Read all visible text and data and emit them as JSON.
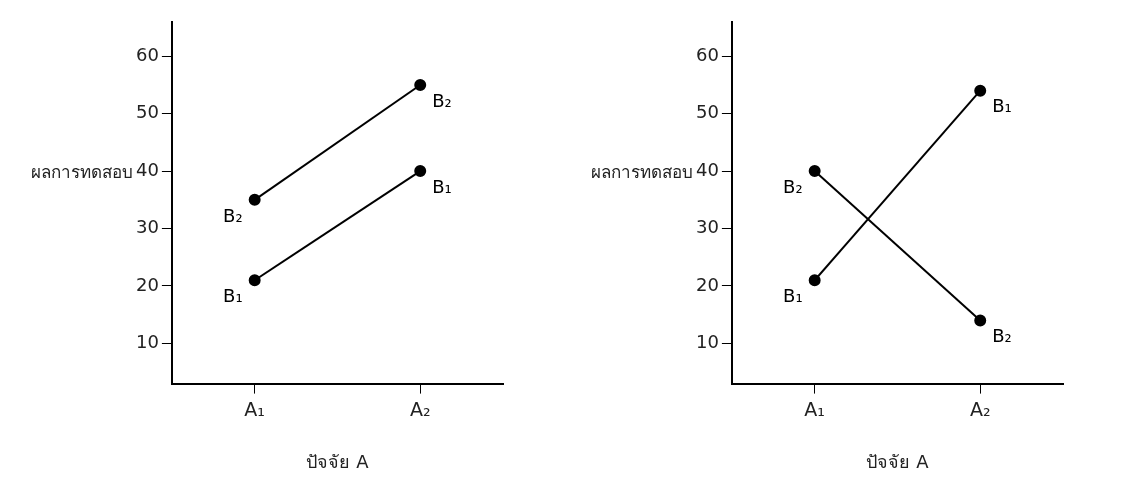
{
  "chart_data": [
    {
      "type": "line",
      "xlabel": "ปัจจัย A",
      "ylabel": "ผลการทดสอบ",
      "categories": [
        "A₁",
        "A₂"
      ],
      "ylim": [
        3,
        66
      ],
      "yticks": [
        10,
        20,
        30,
        40,
        50,
        60
      ],
      "grid": false,
      "legend": false,
      "marker": "circle",
      "series": [
        {
          "name": "B₁",
          "color": "#000000",
          "values": [
            21,
            40
          ]
        },
        {
          "name": "B₂",
          "color": "#000000",
          "values": [
            35,
            55
          ]
        }
      ]
    },
    {
      "type": "line",
      "xlabel": "ปัจจัย A",
      "ylabel": "ผลการทดสอบ",
      "categories": [
        "A₁",
        "A₂"
      ],
      "ylim": [
        3,
        66
      ],
      "yticks": [
        10,
        20,
        30,
        40,
        50,
        60
      ],
      "grid": false,
      "legend": false,
      "marker": "circle",
      "series": [
        {
          "name": "B₁",
          "color": "#000000",
          "values": [
            21,
            54
          ]
        },
        {
          "name": "B₂",
          "color": "#000000",
          "values": [
            40,
            14
          ]
        }
      ]
    }
  ]
}
